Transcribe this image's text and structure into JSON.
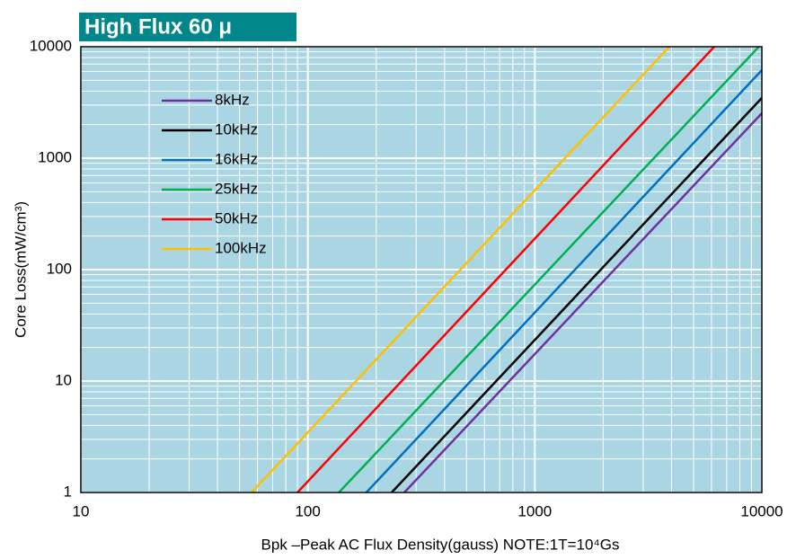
{
  "chart_data": {
    "type": "line",
    "title": "High Flux 60 μ",
    "x_label": "Bpk –Peak AC Flux Density(gauss)   NOTE:1T=10⁴Gs",
    "y_label": "Core Loss(mW/cm³)",
    "x_log": true,
    "y_log": true,
    "grid": true,
    "legend": "upper left",
    "xlim": [
      10,
      10000
    ],
    "ylim": [
      1,
      10000
    ],
    "xticks": [
      10,
      100,
      1000,
      10000
    ],
    "yticks": [
      1,
      10,
      100,
      1000,
      10000
    ],
    "series": [
      {
        "name": "8kHz",
        "color": "#7030a0",
        "x": [
          266,
          10000
        ],
        "values": [
          1,
          2530
        ]
      },
      {
        "name": "10kHz",
        "color": "#000000",
        "x": [
          234,
          10000
        ],
        "values": [
          1,
          3470
        ]
      },
      {
        "name": "16kHz",
        "color": "#0070c0",
        "x": [
          181,
          10000
        ],
        "values": [
          1,
          6170
        ]
      },
      {
        "name": "25kHz",
        "color": "#00b050",
        "x": [
          137,
          9700
        ],
        "values": [
          1,
          10000
        ]
      },
      {
        "name": "50kHz",
        "color": "#ff0000",
        "x": [
          90,
          6170
        ],
        "values": [
          1,
          10000
        ]
      },
      {
        "name": "100kHz",
        "color": "#ffc000",
        "x": [
          56.5,
          3910
        ],
        "values": [
          1,
          10000
        ]
      }
    ]
  }
}
